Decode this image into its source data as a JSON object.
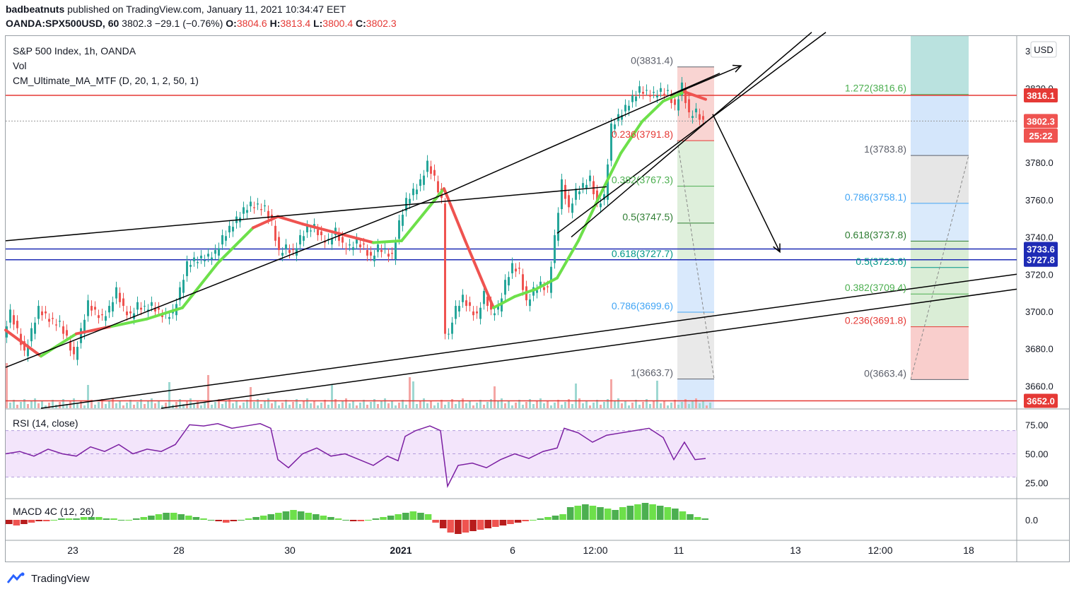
{
  "header": {
    "author": "badbeatnuts",
    "published": "published on TradingView.com, January 11, 2021 10:34:47 EET",
    "symbol": "OANDA:SPX500USD, 60",
    "last": "3802.3",
    "change": "−29.1 (−0.76%)",
    "o_label": "O:",
    "o": "3804.6",
    "h_label": "H:",
    "h": "3813.4",
    "l_label": "L:",
    "l": "3800.4",
    "c_label": "C:",
    "c": "3802.3"
  },
  "legend": {
    "title": "S&P 500 Index, 1h, OANDA",
    "vol": "Vol",
    "ma": "CM_Ultimate_MA_MTF (D, 20, 1, 2, 50, 1)",
    "rsi": "RSI (14, close)",
    "macd": "MACD 4C (12, 26)"
  },
  "price_axis": {
    "currency": "USD",
    "ticks": [
      "3840.0",
      "3820.0",
      "3780.0",
      "3760.0",
      "3740.0",
      "3720.0",
      "3700.0",
      "3680.0",
      "3660.0"
    ],
    "tick_values": [
      3840,
      3820,
      3780,
      3760,
      3740,
      3720,
      3700,
      3680,
      3660
    ],
    "rsi_ticks": [
      "75.00",
      "50.00",
      "25.00"
    ],
    "macd_ticks": [
      "0.0"
    ],
    "labels": [
      {
        "text": "3816.1",
        "value": 3816.1,
        "color": "#e53935"
      },
      {
        "text": "3802.3",
        "value": 3802.3,
        "color": "#ef5350"
      },
      {
        "text": "25:22",
        "value": 3794.5,
        "color": "#ef5350"
      },
      {
        "text": "3733.6",
        "value": 3733.6,
        "color": "#1e2bb5"
      },
      {
        "text": "3727.8",
        "value": 3727.8,
        "color": "#1e2bb5"
      },
      {
        "text": "3652.0",
        "value": 3652.0,
        "color": "#e53935"
      }
    ]
  },
  "time_axis": {
    "labels": [
      "23",
      "28",
      "30",
      "2021",
      "6",
      "12:00",
      "11",
      "13",
      "12:00",
      "18"
    ],
    "bold": [
      false,
      false,
      false,
      true,
      false,
      false,
      false,
      false,
      false,
      false
    ]
  },
  "fib_left": [
    {
      "text": "0(3831.4)",
      "value": 3831.4,
      "color": "#5d606b"
    },
    {
      "text": "0.236(3791.8)",
      "value": 3791.8,
      "color": "#e53935"
    },
    {
      "text": "0.382(3767.3)",
      "value": 3767.3,
      "color": "#4caf50"
    },
    {
      "text": "0.5(3747.5)",
      "value": 3747.5,
      "color": "#2e7d32"
    },
    {
      "text": "0.618(3727.7)",
      "value": 3727.7,
      "color": "#009688"
    },
    {
      "text": "0.786(3699.6)",
      "value": 3699.6,
      "color": "#42a5f5"
    },
    {
      "text": "1(3663.7)",
      "value": 3663.7,
      "color": "#5d606b"
    }
  ],
  "fib_right": [
    {
      "text": "1.272(3816.6)",
      "value": 3816.6,
      "color": "#4caf50"
    },
    {
      "text": "1(3783.8)",
      "value": 3783.8,
      "color": "#5d606b"
    },
    {
      "text": "0.786(3758.1)",
      "value": 3758.1,
      "color": "#42a5f5"
    },
    {
      "text": "0.618(3737.8)",
      "value": 3737.8,
      "color": "#2e7d32"
    },
    {
      "text": "0.5(3723.6)",
      "value": 3723.6,
      "color": "#009688"
    },
    {
      "text": "0.382(3709.4)",
      "value": 3709.4,
      "color": "#4caf50"
    },
    {
      "text": "0.236(3691.8)",
      "value": 3691.8,
      "color": "#e53935"
    },
    {
      "text": "0(3663.4)",
      "value": 3663.4,
      "color": "#5d606b"
    }
  ],
  "chart_data": {
    "type": "candlestick",
    "title": "S&P 500 Index, 1h, OANDA",
    "ylim": [
      3648,
      3848
    ],
    "horizontal_levels": [
      3816.1,
      3733.6,
      3727.8,
      3652.0
    ],
    "close_path": [
      [
        0,
        3688
      ],
      [
        10,
        3700
      ],
      [
        20,
        3690
      ],
      [
        30,
        3678
      ],
      [
        40,
        3690
      ],
      [
        50,
        3702
      ],
      [
        60,
        3698
      ],
      [
        70,
        3695
      ],
      [
        80,
        3694
      ],
      [
        90,
        3686
      ],
      [
        100,
        3676
      ],
      [
        110,
        3690
      ],
      [
        120,
        3705
      ],
      [
        130,
        3700
      ],
      [
        140,
        3697
      ],
      [
        150,
        3702
      ],
      [
        160,
        3712
      ],
      [
        170,
        3702
      ],
      [
        180,
        3698
      ],
      [
        190,
        3704
      ],
      [
        200,
        3702
      ],
      [
        210,
        3704
      ],
      [
        220,
        3700
      ],
      [
        230,
        3698
      ],
      [
        240,
        3700
      ],
      [
        250,
        3712
      ],
      [
        260,
        3726
      ],
      [
        270,
        3728
      ],
      [
        280,
        3729
      ],
      [
        290,
        3730
      ],
      [
        300,
        3732
      ],
      [
        310,
        3740
      ],
      [
        320,
        3745
      ],
      [
        330,
        3750
      ],
      [
        340,
        3755
      ],
      [
        350,
        3758
      ],
      [
        360,
        3757
      ],
      [
        370,
        3756
      ],
      [
        380,
        3748
      ],
      [
        390,
        3732
      ],
      [
        400,
        3735
      ],
      [
        410,
        3732
      ],
      [
        420,
        3740
      ],
      [
        430,
        3745
      ],
      [
        440,
        3746
      ],
      [
        450,
        3740
      ],
      [
        460,
        3738
      ],
      [
        470,
        3744
      ],
      [
        480,
        3736
      ],
      [
        490,
        3735
      ],
      [
        500,
        3738
      ],
      [
        510,
        3735
      ],
      [
        520,
        3729
      ],
      [
        530,
        3735
      ],
      [
        540,
        3733
      ],
      [
        550,
        3730
      ],
      [
        560,
        3748
      ],
      [
        570,
        3760
      ],
      [
        580,
        3765
      ],
      [
        590,
        3770
      ],
      [
        600,
        3780
      ],
      [
        610,
        3772
      ],
      [
        620,
        3760
      ],
      [
        625,
        3690
      ],
      [
        630,
        3690
      ],
      [
        640,
        3702
      ],
      [
        650,
        3708
      ],
      [
        660,
        3702
      ],
      [
        670,
        3698
      ],
      [
        680,
        3710
      ],
      [
        690,
        3700
      ],
      [
        700,
        3702
      ],
      [
        710,
        3716
      ],
      [
        720,
        3725
      ],
      [
        730,
        3722
      ],
      [
        740,
        3705
      ],
      [
        750,
        3712
      ],
      [
        760,
        3715
      ],
      [
        770,
        3712
      ],
      [
        780,
        3740
      ],
      [
        790,
        3770
      ],
      [
        800,
        3755
      ],
      [
        810,
        3765
      ],
      [
        820,
        3768
      ],
      [
        830,
        3772
      ],
      [
        840,
        3758
      ],
      [
        850,
        3762
      ],
      [
        860,
        3800
      ],
      [
        870,
        3805
      ],
      [
        880,
        3810
      ],
      [
        890,
        3815
      ],
      [
        900,
        3820
      ],
      [
        910,
        3818
      ],
      [
        920,
        3817
      ],
      [
        930,
        3819
      ],
      [
        940,
        3818
      ],
      [
        950,
        3810
      ],
      [
        960,
        3822
      ],
      [
        970,
        3806
      ],
      [
        980,
        3808
      ],
      [
        990,
        3802
      ]
    ],
    "ma_points": [
      [
        0,
        3690
      ],
      [
        50,
        3676
      ],
      [
        100,
        3688
      ],
      [
        150,
        3692
      ],
      [
        200,
        3696
      ],
      [
        250,
        3702
      ],
      [
        300,
        3726
      ],
      [
        350,
        3745
      ],
      [
        385,
        3751
      ],
      [
        420,
        3747
      ],
      [
        470,
        3742
      ],
      [
        520,
        3737
      ],
      [
        560,
        3738
      ],
      [
        590,
        3752
      ],
      [
        620,
        3766
      ],
      [
        650,
        3738
      ],
      [
        690,
        3702
      ],
      [
        720,
        3708
      ],
      [
        750,
        3712
      ],
      [
        780,
        3718
      ],
      [
        810,
        3738
      ],
      [
        840,
        3762
      ],
      [
        870,
        3785
      ],
      [
        900,
        3802
      ],
      [
        930,
        3813
      ],
      [
        960,
        3818
      ],
      [
        990,
        3814
      ]
    ],
    "ma_colors": [
      "#ef5350",
      "#6de04a",
      "#ef5350",
      "#6de04a",
      "#6de04a",
      "#6de04a",
      "#6de04a",
      "#ef5350",
      "#ef5350",
      "#ef5350",
      "#ef5350",
      "#6de04a",
      "#6de04a",
      "#6de04a",
      "#ef5350",
      "#ef5350",
      "#6de04a",
      "#6de04a",
      "#6de04a",
      "#6de04a",
      "#6de04a",
      "#6de04a",
      "#6de04a",
      "#6de04a",
      "#6de04a",
      "#ef5350"
    ],
    "trend_lines": [
      [
        [
          0,
          3670
        ],
        [
          620,
          3763
        ]
      ],
      [
        [
          0,
          3738
        ],
        [
          850,
          3767
        ]
      ],
      [
        [
          620,
          3763
        ],
        [
          1010,
          3828
        ]
      ],
      [
        [
          50,
          3648
        ],
        [
          1430,
          3720
        ]
      ],
      [
        [
          220,
          3648
        ],
        [
          1430,
          3712
        ]
      ],
      [
        [
          780,
          3742
        ],
        [
          1160,
          3850
        ]
      ],
      [
        [
          800,
          3740
        ],
        [
          1140,
          3850
        ]
      ]
    ],
    "arrows": [
      [
        [
          940,
          3816
        ],
        [
          1040,
          3832
        ]
      ],
      [
        [
          1000,
          3806
        ],
        [
          1095,
          3732
        ]
      ]
    ],
    "rsi": [
      [
        0,
        50
      ],
      [
        20,
        52
      ],
      [
        40,
        48
      ],
      [
        60,
        54
      ],
      [
        80,
        50
      ],
      [
        100,
        48
      ],
      [
        120,
        56
      ],
      [
        140,
        52
      ],
      [
        160,
        58
      ],
      [
        180,
        50
      ],
      [
        200,
        54
      ],
      [
        220,
        52
      ],
      [
        240,
        58
      ],
      [
        260,
        75
      ],
      [
        280,
        74
      ],
      [
        300,
        76
      ],
      [
        320,
        72
      ],
      [
        340,
        74
      ],
      [
        360,
        76
      ],
      [
        375,
        72
      ],
      [
        385,
        45
      ],
      [
        400,
        38
      ],
      [
        420,
        50
      ],
      [
        440,
        55
      ],
      [
        460,
        48
      ],
      [
        480,
        50
      ],
      [
        500,
        45
      ],
      [
        520,
        40
      ],
      [
        540,
        48
      ],
      [
        555,
        44
      ],
      [
        565,
        65
      ],
      [
        580,
        70
      ],
      [
        600,
        74
      ],
      [
        615,
        70
      ],
      [
        625,
        22
      ],
      [
        640,
        40
      ],
      [
        660,
        42
      ],
      [
        680,
        38
      ],
      [
        700,
        45
      ],
      [
        720,
        50
      ],
      [
        740,
        46
      ],
      [
        760,
        52
      ],
      [
        780,
        55
      ],
      [
        790,
        72
      ],
      [
        810,
        68
      ],
      [
        830,
        60
      ],
      [
        850,
        66
      ],
      [
        870,
        68
      ],
      [
        890,
        70
      ],
      [
        910,
        72
      ],
      [
        930,
        64
      ],
      [
        945,
        45
      ],
      [
        960,
        60
      ],
      [
        975,
        45
      ],
      [
        990,
        46
      ]
    ],
    "rsi_levels": [
      70,
      50,
      30
    ],
    "macd_hist": [
      -3,
      -4,
      -3,
      -2,
      -1,
      -1,
      0,
      1,
      1,
      1,
      2,
      2,
      2,
      1,
      1,
      0,
      0,
      1,
      2,
      3,
      4,
      5,
      5,
      4,
      3,
      2,
      1,
      0,
      -1,
      -2,
      -1,
      0,
      1,
      2,
      3,
      4,
      5,
      6,
      7,
      6,
      5,
      4,
      3,
      2,
      1,
      0,
      -1,
      -1,
      0,
      1,
      2,
      3,
      4,
      5,
      6,
      5,
      4,
      -2,
      -6,
      -9,
      -10,
      -9,
      -8,
      -7,
      -6,
      -5,
      -4,
      -3,
      -2,
      -1,
      0,
      1,
      2,
      3,
      4,
      9,
      10,
      11,
      10,
      9,
      8,
      7,
      9,
      10,
      11,
      12,
      11,
      10,
      9,
      8,
      6,
      4,
      2,
      1
    ]
  }
}
